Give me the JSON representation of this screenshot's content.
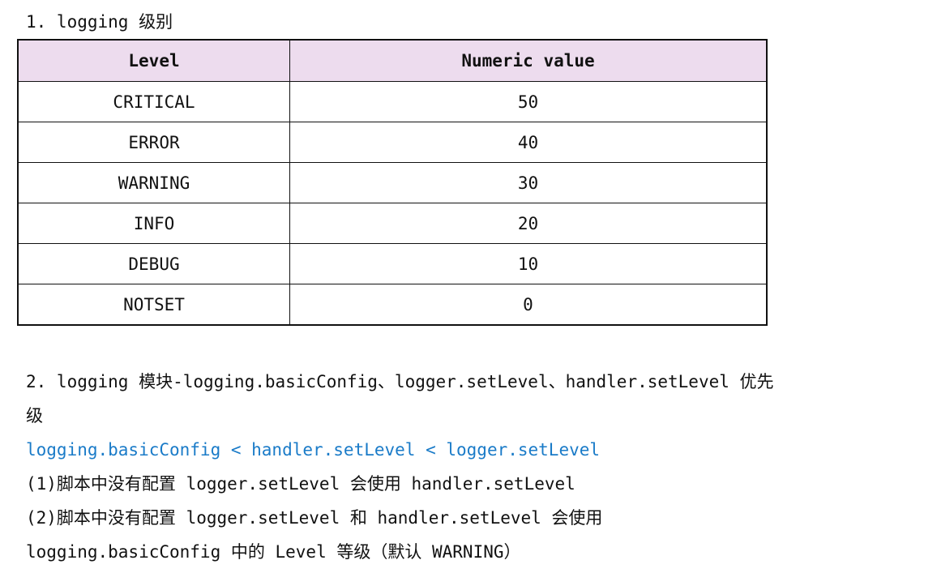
{
  "section1": {
    "heading": "1. logging 级别",
    "table": {
      "headers": [
        "Level",
        "Numeric value"
      ],
      "rows": [
        [
          "CRITICAL",
          "50"
        ],
        [
          "ERROR",
          "40"
        ],
        [
          "WARNING",
          "30"
        ],
        [
          "INFO",
          "20"
        ],
        [
          "DEBUG",
          "10"
        ],
        [
          "NOTSET",
          "0"
        ]
      ]
    }
  },
  "section2": {
    "heading_line1": "2. logging 模块-logging.basicConfig、logger.setLevel、handler.setLevel 优先",
    "heading_line2": "级",
    "priority": "logging.basicConfig < handler.setLevel < logger.setLevel",
    "note1": "(1)脚本中没有配置 logger.setLevel 会使用 handler.setLevel",
    "note2_line1": "(2)脚本中没有配置 logger.setLevel 和 handler.setLevel 会使用",
    "note2_line2": "logging.basicConfig 中的 Level 等级（默认 WARNING）",
    "priority_color": "#1a7bc8"
  }
}
